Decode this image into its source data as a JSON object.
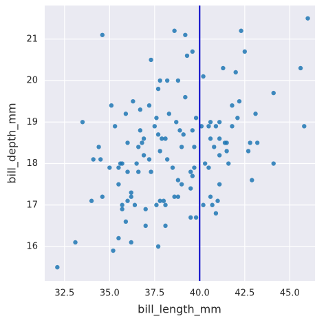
{
  "chart_data": {
    "type": "scatter",
    "xlabel": "bill_length_mm",
    "ylabel": "bill_depth_mm",
    "xlim": [
      31.4,
      46.4
    ],
    "ylim": [
      15.17,
      21.81
    ],
    "xticks": [
      32.5,
      {
        "value": 35,
        "label": "35.0"
      },
      37.5,
      {
        "value": 40,
        "label": "40.0"
      },
      42.5,
      {
        "value": 45,
        "label": "45.0"
      }
    ],
    "yticks": [
      16,
      17,
      18,
      19,
      20,
      21
    ],
    "grid": true,
    "color": "#1f77b4",
    "vline": 40,
    "vline_color": "#0000c8",
    "x": [
      32.1,
      33.1,
      33.5,
      34.6,
      34.0,
      34.4,
      34.1,
      34.5,
      34.6,
      35.0,
      35.1,
      35.3,
      35.2,
      35.5,
      35.5,
      35.7,
      35.7,
      35.9,
      35.9,
      36.0,
      36.0,
      36.0,
      35.5,
      35.6,
      36.2,
      36.2,
      36.3,
      36.4,
      36.5,
      36.6,
      36.7,
      36.8,
      36.9,
      36.7,
      37.0,
      37.0,
      37.2,
      37.3,
      37.3,
      37.2,
      37.6,
      37.7,
      37.7,
      37.8,
      37.8,
      37.9,
      38.1,
      38.1,
      38.1,
      38.2,
      38.2,
      38.3,
      38.5,
      38.6,
      38.6,
      38.7,
      38.8,
      38.8,
      38.9,
      39.0,
      39.1,
      39.2,
      39.2,
      39.3,
      39.5,
      39.5,
      39.6,
      39.6,
      39.7,
      39.8,
      40.1,
      40.2,
      40.2,
      40.3,
      40.5,
      40.6,
      40.6,
      40.7,
      40.8,
      40.9,
      41.0,
      41.1,
      41.1,
      41.1,
      41.3,
      41.4,
      41.5,
      41.6,
      41.8,
      42.0,
      42.1,
      42.2,
      42.3,
      42.5,
      42.7,
      42.8,
      42.9,
      43.1,
      43.2,
      44.1,
      44.1,
      45.6,
      45.8,
      46.0,
      36.6,
      37.8,
      38.8,
      39.0,
      39.7,
      40.9,
      41.1,
      36.2,
      37.5,
      38.0,
      35.7,
      39.6,
      41.5,
      40.6,
      37.7,
      39.5,
      36.9,
      37.6,
      40.5,
      41.8,
      39.8
    ],
    "y": [
      15.5,
      16.1,
      19.0,
      21.1,
      17.1,
      18.4,
      18.1,
      18.1,
      17.2,
      17.9,
      19.4,
      18.9,
      15.9,
      17.5,
      16.2,
      16.9,
      17.0,
      19.2,
      16.6,
      17.1,
      18.5,
      17.8,
      17.9,
      18.0,
      16.1,
      17.2,
      19.5,
      17.0,
      18.0,
      17.8,
      18.8,
      18.5,
      18.6,
      19.3,
      16.9,
      16.5,
      18.1,
      17.8,
      20.5,
      19.4,
      19.1,
      18.7,
      16.0,
      20.0,
      18.3,
      18.6,
      18.6,
      17.0,
      16.5,
      18.1,
      20.0,
      19.2,
      17.9,
      21.2,
      17.2,
      19.0,
      17.2,
      20.0,
      18.8,
      17.5,
      18.7,
      19.6,
      21.1,
      20.6,
      17.4,
      16.7,
      18.8,
      17.7,
      18.4,
      19.1,
      18.9,
      20.1,
      17.0,
      18.0,
      17.9,
      18.6,
      19.0,
      17.0,
      18.4,
      16.8,
      17.1,
      18.2,
      19.0,
      17.5,
      20.3,
      18.5,
      18.3,
      18.0,
      19.4,
      20.2,
      19.1,
      19.5,
      21.2,
      20.7,
      18.3,
      18.5,
      17.6,
      19.2,
      18.5,
      19.7,
      18.0,
      20.3,
      18.9,
      21.5,
      18.4,
      17.1,
      17.6,
      18.4,
      17.9,
      18.9,
      18.6,
      17.3,
      18.9,
      17.1,
      18.0,
      20.7,
      18.5,
      17.2,
      19.8,
      17.8,
      18.2,
      17.0,
      18.9,
      18.9,
      16.7
    ]
  }
}
